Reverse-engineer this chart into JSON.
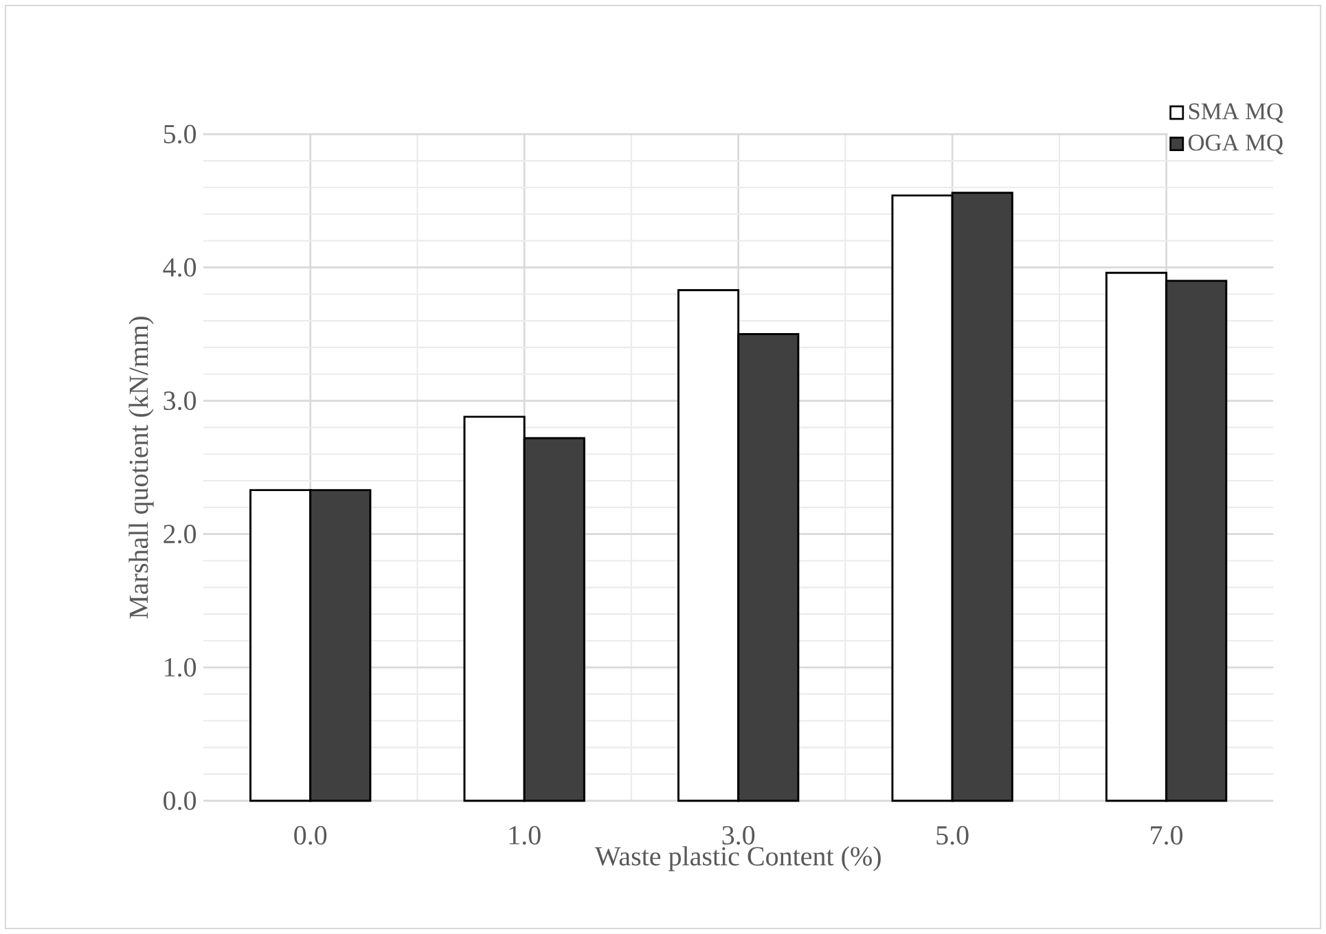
{
  "chart_data": {
    "type": "bar",
    "xlabel": "Waste plastic Content (%)",
    "ylabel": "Marshall quotient (kN/mm)",
    "categories": [
      "0.0",
      "1.0",
      "3.0",
      "5.0",
      "7.0"
    ],
    "series": [
      {
        "name": "SMA MQ",
        "color": "#ffffff",
        "values": [
          2.33,
          2.88,
          3.83,
          4.54,
          3.96
        ]
      },
      {
        "name": "OGA MQ",
        "color": "#404040",
        "values": [
          2.33,
          2.72,
          3.5,
          4.56,
          3.9
        ]
      }
    ],
    "ylim": [
      0,
      5
    ],
    "yticks": [
      {
        "value": 0,
        "label": "0.0"
      },
      {
        "value": 1,
        "label": "1.0"
      },
      {
        "value": 2,
        "label": "2.0"
      },
      {
        "value": 3,
        "label": "3.0"
      },
      {
        "value": 4,
        "label": "4.0"
      },
      {
        "value": 5,
        "label": "5.0"
      }
    ],
    "grid": true,
    "legend": "top right"
  }
}
